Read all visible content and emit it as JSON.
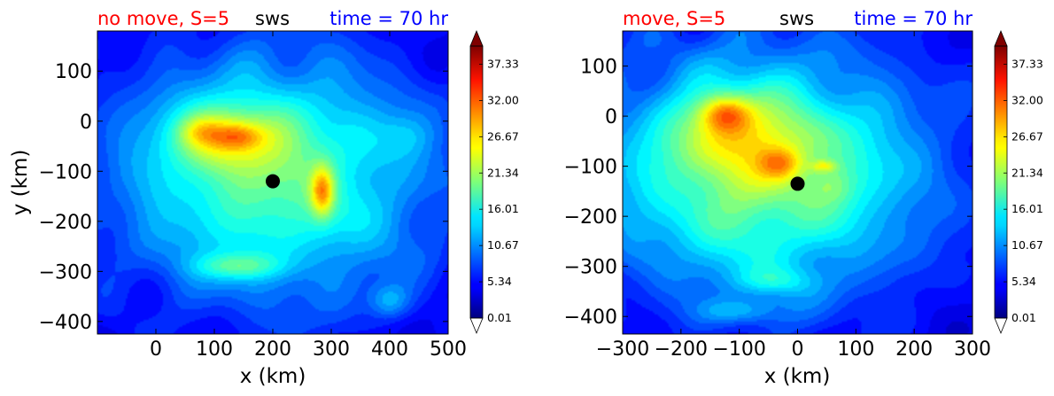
{
  "chart_data": [
    {
      "type": "heatmap",
      "title_left": "no move, S=5",
      "title_center": "sws",
      "title_right": "time = 70 hr",
      "xlabel": "x (km)",
      "ylabel": "y (km)",
      "xlim": [
        -100,
        500
      ],
      "ylim": [
        -425,
        180
      ],
      "xticks": [
        "0",
        "100",
        "200",
        "300",
        "400",
        "500"
      ],
      "xtick_values": [
        0,
        100,
        200,
        300,
        400,
        500
      ],
      "yticks": [
        "100",
        "0",
        "−100",
        "−200",
        "−300",
        "−400"
      ],
      "ytick_values": [
        100,
        0,
        -100,
        -200,
        -300,
        -400
      ],
      "marker": {
        "x": 200,
        "y": -120
      },
      "colorbar": {
        "ticks": [
          "37.33",
          "32.00",
          "26.67",
          "21.34",
          "16.01",
          "10.67",
          "5.34",
          "0.01"
        ],
        "tick_values": [
          37.33,
          32.0,
          26.67,
          21.34,
          16.01,
          10.67,
          5.34,
          0.01
        ],
        "range": [
          0.01,
          40.0
        ]
      },
      "features": [
        {
          "x": 200,
          "y": -110,
          "sx": 190,
          "sy": 170,
          "value": 15
        },
        {
          "x": 120,
          "y": -30,
          "sx": 70,
          "sy": 45,
          "value": 10
        },
        {
          "x": 140,
          "y": -30,
          "sx": 30,
          "sy": 18,
          "value": 6
        },
        {
          "x": 75,
          "y": -20,
          "sx": 25,
          "sy": 20,
          "value": 4
        },
        {
          "x": 285,
          "y": -140,
          "sx": 14,
          "sy": 35,
          "value": 12
        },
        {
          "x": 140,
          "y": -290,
          "sx": 50,
          "sy": 18,
          "value": 7
        },
        {
          "x": 400,
          "y": -360,
          "sx": 25,
          "sy": 25,
          "value": 6
        },
        {
          "x": 430,
          "y": -30,
          "sx": 30,
          "sy": 30,
          "value": 3
        }
      ]
    },
    {
      "type": "heatmap",
      "title_left": "move, S=5",
      "title_center": "sws",
      "title_right": "time = 70 hr",
      "xlabel": "x (km)",
      "ylabel": "",
      "xlim": [
        -300,
        300
      ],
      "ylim": [
        -435,
        170
      ],
      "xticks": [
        "−300",
        "−200",
        "−100",
        "0",
        "100",
        "200",
        "300"
      ],
      "xtick_values": [
        -300,
        -200,
        -100,
        0,
        100,
        200,
        300
      ],
      "yticks": [
        "100",
        "0",
        "−100",
        "−200",
        "−300",
        "−400"
      ],
      "ytick_values": [
        100,
        0,
        -100,
        -200,
        -300,
        -400
      ],
      "marker": {
        "x": 0,
        "y": -135
      },
      "colorbar": {
        "ticks": [
          "37.33",
          "32.00",
          "26.67",
          "21.34",
          "16.01",
          "10.67",
          "5.34",
          "0.01"
        ],
        "tick_values": [
          37.33,
          32.0,
          26.67,
          21.34,
          16.01,
          10.67,
          5.34,
          0.01
        ],
        "range": [
          0.01,
          40.0
        ]
      },
      "features": [
        {
          "x": -60,
          "y": -110,
          "sx": 200,
          "sy": 170,
          "value": 17
        },
        {
          "x": -100,
          "y": -40,
          "sx": 70,
          "sy": 55,
          "value": 8
        },
        {
          "x": -125,
          "y": 5,
          "sx": 30,
          "sy": 25,
          "value": 10
        },
        {
          "x": -30,
          "y": -95,
          "sx": 25,
          "sy": 22,
          "value": 7
        },
        {
          "x": 45,
          "y": -100,
          "sx": 15,
          "sy": 8,
          "value": 6
        },
        {
          "x": 60,
          "y": -140,
          "sx": 25,
          "sy": 25,
          "value": 3
        },
        {
          "x": -40,
          "y": -330,
          "sx": 45,
          "sy": 20,
          "value": 5
        },
        {
          "x": -100,
          "y": -390,
          "sx": 50,
          "sy": 18,
          "value": 5
        }
      ]
    }
  ]
}
